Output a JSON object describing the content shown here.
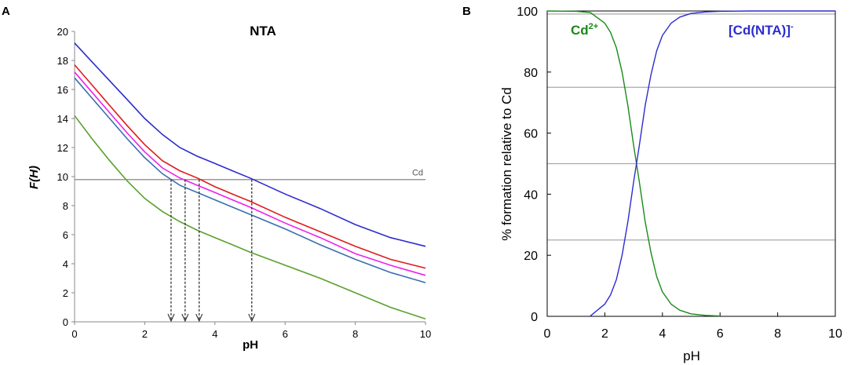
{
  "chart_data": [
    {
      "panel": "A",
      "type": "line",
      "title": "NTA",
      "xlabel": "pH",
      "ylabel": "F(H)",
      "xlim": [
        0,
        10
      ],
      "ylim": [
        0,
        20
      ],
      "xticks": [
        0,
        2,
        4,
        6,
        8,
        10
      ],
      "yticks": [
        0,
        2,
        4,
        6,
        8,
        10,
        12,
        14,
        16,
        18,
        20
      ],
      "reference_line": {
        "label": "Cd",
        "y": 9.8,
        "color": "#999999"
      },
      "arrows_x": [
        2.75,
        3.15,
        3.55,
        5.05
      ],
      "x": [
        0,
        0.5,
        1,
        1.5,
        2,
        2.5,
        3,
        3.5,
        4,
        4.5,
        5,
        6,
        7,
        8,
        9,
        10
      ],
      "series": [
        {
          "name": "blue",
          "color": "#2c2ccf",
          "values": [
            19.2,
            17.9,
            16.6,
            15.3,
            14.0,
            12.9,
            12.0,
            11.4,
            10.9,
            10.4,
            9.9,
            8.8,
            7.8,
            6.7,
            5.8,
            5.2
          ]
        },
        {
          "name": "red",
          "color": "#e01b1b",
          "values": [
            17.7,
            16.3,
            14.9,
            13.5,
            12.2,
            11.1,
            10.4,
            9.9,
            9.3,
            8.8,
            8.3,
            7.2,
            6.2,
            5.2,
            4.3,
            3.7
          ]
        },
        {
          "name": "magenta",
          "color": "#ee20ee",
          "values": [
            17.2,
            15.8,
            14.4,
            13.0,
            11.7,
            10.6,
            9.9,
            9.4,
            8.9,
            8.4,
            7.9,
            6.8,
            5.8,
            4.7,
            3.9,
            3.2
          ]
        },
        {
          "name": "steel-blue",
          "color": "#3a6eb0",
          "values": [
            16.8,
            15.4,
            14.0,
            12.6,
            11.3,
            10.2,
            9.4,
            8.9,
            8.4,
            7.9,
            7.4,
            6.4,
            5.3,
            4.3,
            3.4,
            2.7
          ]
        },
        {
          "name": "green",
          "color": "#5aa02c",
          "values": [
            14.2,
            12.6,
            11.1,
            9.7,
            8.5,
            7.6,
            6.9,
            6.3,
            5.8,
            5.3,
            4.8,
            3.9,
            3.0,
            2.0,
            1.0,
            0.2
          ]
        }
      ]
    },
    {
      "panel": "B",
      "type": "line",
      "xlabel": "pH",
      "ylabel": "% formation relative to Cd",
      "xlim": [
        0,
        10
      ],
      "ylim": [
        0,
        100
      ],
      "xticks": [
        0,
        2,
        4,
        6,
        8,
        10
      ],
      "yticks": [
        0,
        20,
        40,
        60,
        80,
        100
      ],
      "gridlines_y": [
        25,
        50,
        75,
        99
      ],
      "x": [
        0,
        1,
        1.5,
        2,
        2.2,
        2.4,
        2.6,
        2.8,
        3.0,
        3.2,
        3.4,
        3.6,
        3.8,
        4.0,
        4.3,
        4.6,
        5.0,
        5.5,
        6.0,
        7,
        8,
        9,
        10
      ],
      "series": [
        {
          "name": "Cd",
          "label_main": "Cd",
          "label_sup": "2+",
          "color": "#1a8a1a",
          "x": [
            0,
            1,
            1.5,
            2,
            2.2,
            2.4,
            2.6,
            2.8,
            3.0,
            3.2,
            3.4,
            3.6,
            3.8,
            4.0,
            4.3,
            4.6,
            5.0,
            5.5,
            6.0
          ],
          "values": [
            100,
            99.9,
            99.5,
            96,
            93,
            88,
            80,
            69,
            56,
            44,
            31,
            21,
            13,
            8,
            4,
            2,
            0.8,
            0.3,
            0.1
          ]
        },
        {
          "name": "[Cd(NTA)]-",
          "label_main": "[Cd(NTA)]",
          "label_sup": "-",
          "color": "#2c2ccf",
          "x": [
            1.5,
            2,
            2.2,
            2.4,
            2.6,
            2.8,
            3.0,
            3.2,
            3.4,
            3.6,
            3.8,
            4.0,
            4.3,
            4.6,
            5.0,
            5.5,
            6.0,
            7,
            8,
            9,
            10
          ],
          "values": [
            0.1,
            4,
            7,
            12,
            20,
            31,
            44,
            56,
            69,
            79,
            87,
            92,
            96,
            98,
            99.2,
            99.7,
            99.9,
            100,
            100,
            100,
            100
          ]
        }
      ]
    }
  ],
  "panel_labels": {
    "a": "A",
    "b": "B"
  }
}
